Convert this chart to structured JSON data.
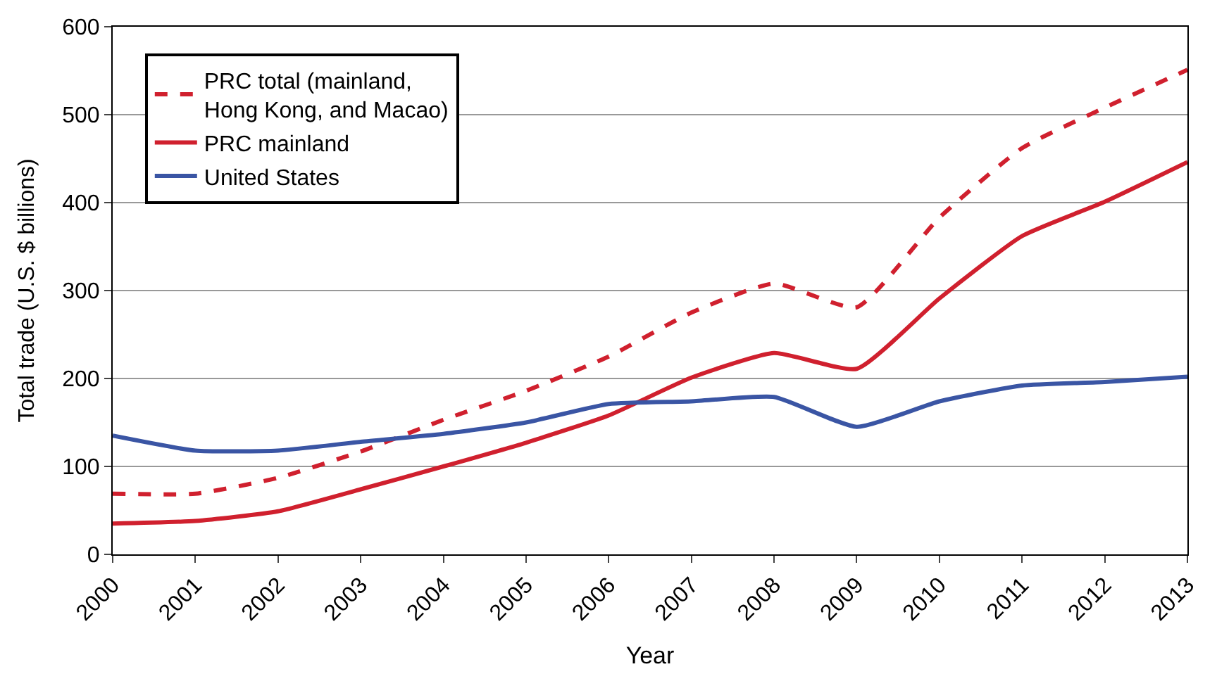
{
  "chart_data": {
    "type": "line",
    "xlabel": "Year",
    "ylabel": "Total trade (U.S. $ billions)",
    "x": [
      2000,
      2001,
      2002,
      2003,
      2004,
      2005,
      2006,
      2007,
      2008,
      2009,
      2010,
      2011,
      2012,
      2013
    ],
    "xlim": [
      2000,
      2013
    ],
    "xticks": [
      2000,
      2001,
      2002,
      2003,
      2004,
      2005,
      2006,
      2007,
      2008,
      2009,
      2010,
      2011,
      2012,
      2013
    ],
    "ylim": [
      0,
      600
    ],
    "yticks": [
      0,
      100,
      200,
      300,
      400,
      500,
      600
    ],
    "grid": "y",
    "legend": "top left",
    "marker": "none",
    "series": [
      {
        "name": "PRC total (mainland,\nHong Kong, and Macao)",
        "color": "#d0202e",
        "line_style": "dashed",
        "values": [
          69,
          69,
          87,
          117,
          153,
          186,
          225,
          275,
          308,
          281,
          383,
          462,
          508,
          551
        ]
      },
      {
        "name": "PRC mainland",
        "color": "#d0202e",
        "line_style": "solid",
        "values": [
          35,
          38,
          49,
          74,
          100,
          127,
          158,
          201,
          229,
          211,
          291,
          362,
          401,
          446
        ]
      },
      {
        "name": "United States",
        "color": "#3a55a4",
        "line_style": "solid",
        "values": [
          135,
          118,
          118,
          128,
          137,
          150,
          171,
          174,
          179,
          145,
          174,
          192,
          196,
          202
        ]
      }
    ]
  }
}
